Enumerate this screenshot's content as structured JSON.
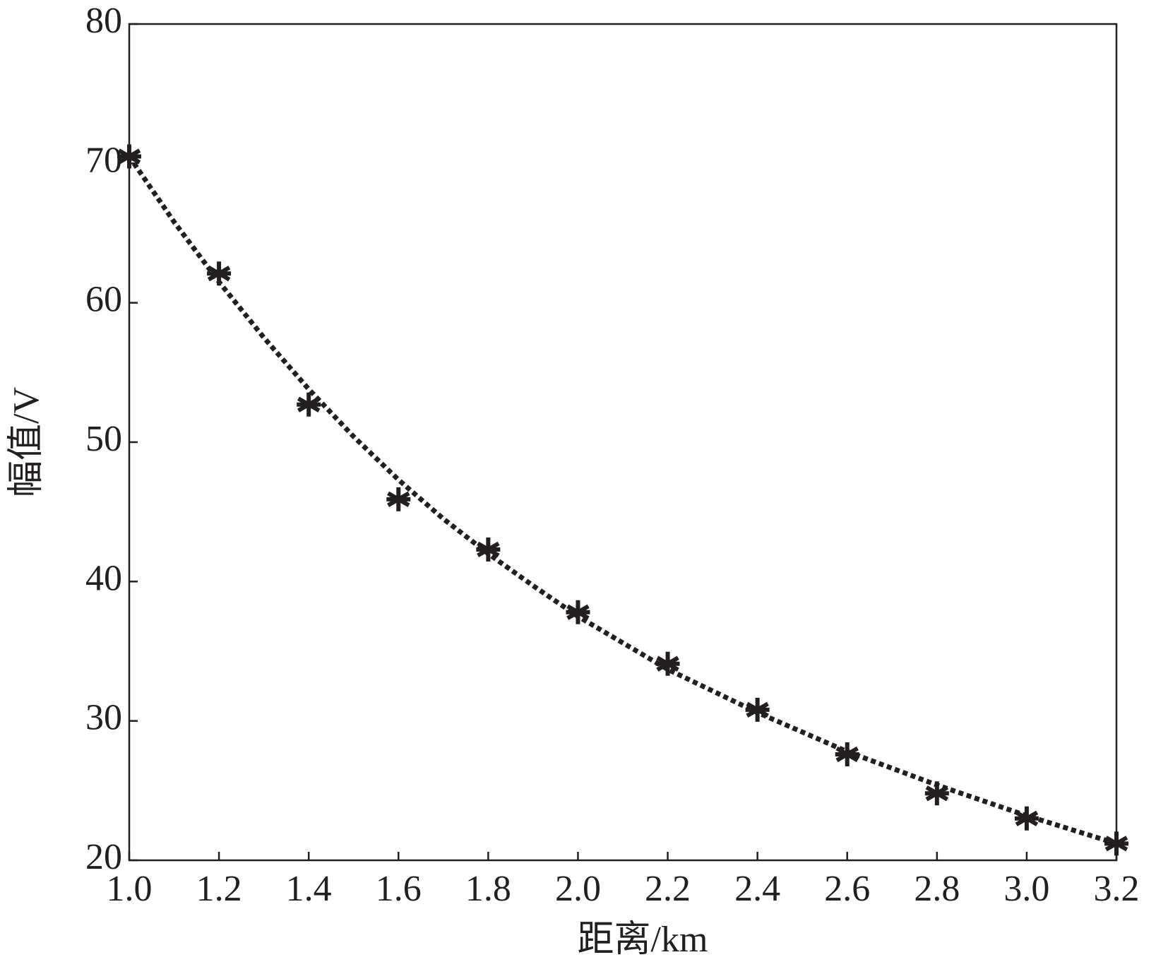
{
  "chart_data": {
    "type": "line",
    "xlabel": "距离/km",
    "ylabel": "幅值/V",
    "xlim": [
      1.0,
      3.2
    ],
    "ylim": [
      20,
      80
    ],
    "xticks": [
      {
        "value": 1.0,
        "label": "1.0"
      },
      {
        "value": 1.2,
        "label": "1.2"
      },
      {
        "value": 1.4,
        "label": "1.4"
      },
      {
        "value": 1.6,
        "label": "1.6"
      },
      {
        "value": 1.8,
        "label": "1.8"
      },
      {
        "value": 2.0,
        "label": "2.0"
      },
      {
        "value": 2.2,
        "label": "2.2"
      },
      {
        "value": 2.4,
        "label": "2.4"
      },
      {
        "value": 2.6,
        "label": "2.6"
      },
      {
        "value": 2.8,
        "label": "2.8"
      },
      {
        "value": 3.0,
        "label": "3.0"
      },
      {
        "value": 3.2,
        "label": "3.2"
      }
    ],
    "yticks": [
      20,
      30,
      40,
      50,
      60,
      70,
      80
    ],
    "grid": false,
    "series": [
      {
        "mode": "markers",
        "color": "#231f20",
        "x": [
          1.0,
          1.2,
          1.4,
          1.6,
          1.8,
          2.0,
          2.2,
          2.4,
          2.6,
          2.8,
          3.0,
          3.2
        ],
        "values": [
          70.5,
          62.1,
          52.7,
          45.9,
          42.3,
          37.8,
          34.1,
          30.8,
          27.6,
          24.8,
          23.0,
          21.2
        ]
      },
      {
        "mode": "dotted-line",
        "color": "#231f20",
        "x": [
          1.0,
          1.1,
          1.2,
          1.3,
          1.4,
          1.5,
          1.6,
          1.7,
          1.8,
          1.9,
          2.0,
          2.2,
          2.4,
          2.6,
          2.8,
          3.0,
          3.2
        ],
        "values": [
          70.5,
          65.8,
          61.5,
          57.5,
          53.8,
          50.4,
          47.3,
          44.5,
          42.0,
          39.7,
          37.5,
          33.7,
          30.6,
          27.8,
          25.4,
          23.2,
          21.2
        ]
      }
    ]
  }
}
